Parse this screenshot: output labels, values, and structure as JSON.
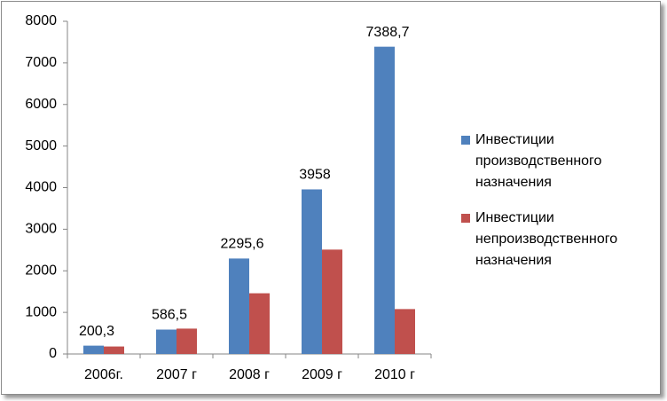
{
  "chart_data": {
    "type": "bar",
    "categories": [
      "2006г.",
      "2007 г",
      "2008 г",
      "2009 г",
      "2010 г"
    ],
    "series": [
      {
        "name": "Инвестиции производственного назначения",
        "color": "#4f81bd",
        "values": [
          200.3,
          586.5,
          2295.6,
          3958,
          7388.7
        ],
        "value_labels": [
          "200,3",
          "586,5",
          "2295,6",
          "3958",
          "7388,7"
        ]
      },
      {
        "name": "Инвестиции непроизводственного назначения",
        "color": "#c0504d",
        "values": [
          180,
          610,
          1460,
          2510,
          1080
        ]
      }
    ],
    "ylim": [
      0,
      8000
    ],
    "yticks": [
      0,
      1000,
      2000,
      3000,
      4000,
      5000,
      6000,
      7000,
      8000
    ],
    "grid": false,
    "legend": "right"
  }
}
